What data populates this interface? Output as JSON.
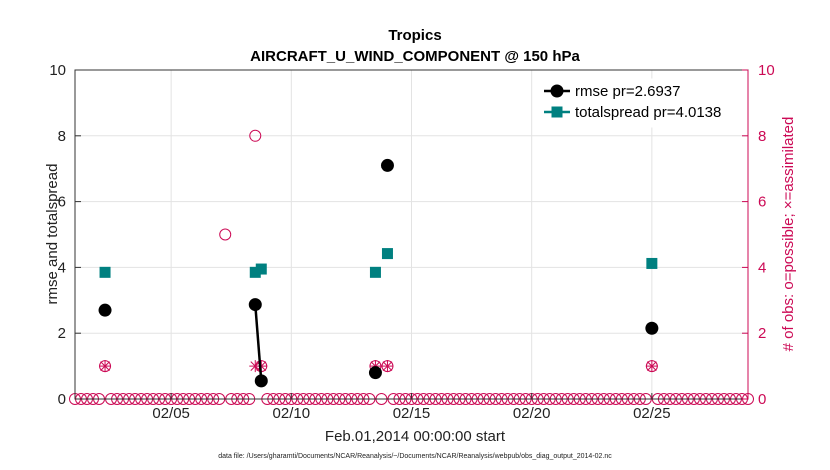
{
  "chart_data": {
    "type": "line",
    "title": "Tropics",
    "subtitle": "AIRCRAFT_U_WIND_COMPONENT @ 150 hPa",
    "xlabel": "Feb.01,2014 00:00:00 start",
    "ylabel": "rmse and totalspread",
    "ylabel_right": "# of obs: o=possible; ×=assimilated",
    "xlim": [
      1.0,
      29.0
    ],
    "ylim": [
      0,
      10
    ],
    "ylim_right": [
      0,
      10
    ],
    "xticks": [
      {
        "value": 5,
        "label": "02/05"
      },
      {
        "value": 10,
        "label": "02/10"
      },
      {
        "value": 15,
        "label": "02/15"
      },
      {
        "value": 20,
        "label": "02/20"
      },
      {
        "value": 25,
        "label": "02/25"
      }
    ],
    "yticks": [
      0,
      2,
      4,
      6,
      8,
      10
    ],
    "yticks_right": [
      0,
      2,
      4,
      6,
      8,
      10
    ],
    "grid": true,
    "legend_position": "top-right",
    "series": [
      {
        "name": "rmse pr=2.6937",
        "color": "#000000",
        "marker": "circle",
        "points": [
          {
            "x": 2.25,
            "y": 2.7
          },
          {
            "x": 8.5,
            "y": 2.87
          },
          {
            "x": 8.75,
            "y": 0.55
          },
          {
            "x": 13.5,
            "y": 0.8
          },
          {
            "x": 14.0,
            "y": 7.1
          },
          {
            "x": 25.0,
            "y": 2.15
          }
        ],
        "segments": [
          [
            1,
            2
          ]
        ]
      },
      {
        "name": "totalspread pr=4.0138",
        "color": "#008080",
        "marker": "square",
        "points": [
          {
            "x": 2.25,
            "y": 3.85
          },
          {
            "x": 8.5,
            "y": 3.85
          },
          {
            "x": 8.75,
            "y": 3.95
          },
          {
            "x": 13.5,
            "y": 3.85
          },
          {
            "x": 14.0,
            "y": 4.42
          },
          {
            "x": 25.0,
            "y": 4.12
          }
        ],
        "segments": [
          [
            1,
            2
          ]
        ]
      }
    ],
    "obs_possible": {
      "color": "#cc0a55",
      "nonzero": [
        {
          "x": 2.25,
          "y": 1
        },
        {
          "x": 7.25,
          "y": 5
        },
        {
          "x": 8.5,
          "y": 8
        },
        {
          "x": 8.75,
          "y": 1
        },
        {
          "x": 13.5,
          "y": 1
        },
        {
          "x": 14.0,
          "y": 1
        },
        {
          "x": 25.0,
          "y": 1
        }
      ],
      "baseline_start": 1.0,
      "baseline_end": 29.0,
      "baseline_step": 0.25
    },
    "obs_assimilated": {
      "color": "#cc0a55",
      "nonzero": [
        {
          "x": 2.25,
          "y": 1
        },
        {
          "x": 8.5,
          "y": 1
        },
        {
          "x": 8.75,
          "y": 1
        },
        {
          "x": 13.5,
          "y": 1
        },
        {
          "x": 14.0,
          "y": 1
        },
        {
          "x": 25.0,
          "y": 1
        }
      ]
    },
    "footnote": "data file: /Users/gharamti/Documents/NCAR/Reanalysis/~/Documents/NCAR/Reanalysis/webpub/obs_diag_output_2014-02.nc"
  }
}
